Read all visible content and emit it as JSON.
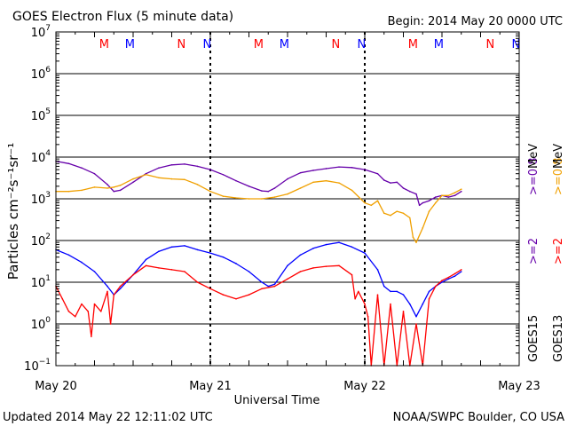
{
  "header": {
    "title": "GOES Electron Flux (5 minute data)",
    "begin": "Begin: 2014 May 20 0000 UTC"
  },
  "footer": {
    "updated": "Updated 2014 May 22 12:11:02 UTC",
    "credit": "NOAA/SWPC Boulder, CO USA"
  },
  "right_labels": {
    "goes15": "GOES15",
    "goes13": "GOES13",
    "ge2_goes15": ">=2",
    "ge2_goes13": ">=2",
    "ge08_goes15": ">=0.8",
    "ge08_goes13": ">=0.8",
    "mev_1": "MeV",
    "mev_2": "MeV"
  },
  "colors": {
    "goes15_ge08": "#6600aa",
    "goes13_ge08": "#f0a000",
    "goes15_ge2": "#0000ff",
    "goes13_ge2": "#ff0000",
    "marker_M": "#ff0000",
    "marker_N": "#0000ff"
  },
  "chart_data": {
    "type": "line",
    "title": "GOES Electron Flux (5 minute data)",
    "xlabel": "Universal Time",
    "ylabel": "Particles cm⁻²s⁻¹sr⁻¹",
    "yscale": "log",
    "ylim": [
      0.1,
      10000000
    ],
    "xlim": [
      0,
      72
    ],
    "x_unit": "hours since 2014 May 20 0000 UTC",
    "x_ticks": [
      {
        "x": 0,
        "label": "May 20"
      },
      {
        "x": 24,
        "label": "May 21"
      },
      {
        "x": 48,
        "label": "May 22"
      },
      {
        "x": 72,
        "label": "May 23"
      }
    ],
    "y_ticks": [
      {
        "exp": -1,
        "base": "10",
        "sup": "−1"
      },
      {
        "exp": 0,
        "base": "10",
        "sup": "0"
      },
      {
        "exp": 1,
        "base": "10",
        "sup": "1"
      },
      {
        "exp": 2,
        "base": "10",
        "sup": "2"
      },
      {
        "exp": 3,
        "base": "10",
        "sup": "3"
      },
      {
        "exp": 4,
        "base": "10",
        "sup": "4"
      },
      {
        "exp": 5,
        "base": "10",
        "sup": "5"
      },
      {
        "exp": 6,
        "base": "10",
        "sup": "6"
      },
      {
        "exp": 7,
        "base": "10",
        "sup": "7"
      }
    ],
    "threshold": 1000,
    "grid": true,
    "markers": [
      {
        "x": 7.5,
        "label": "M",
        "color": "#ff0000"
      },
      {
        "x": 11.5,
        "label": "M",
        "color": "#0000ff"
      },
      {
        "x": 19.5,
        "label": "N",
        "color": "#ff0000"
      },
      {
        "x": 23.5,
        "label": "N",
        "color": "#0000ff"
      },
      {
        "x": 31.5,
        "label": "M",
        "color": "#ff0000"
      },
      {
        "x": 35.5,
        "label": "M",
        "color": "#0000ff"
      },
      {
        "x": 43.5,
        "label": "N",
        "color": "#ff0000"
      },
      {
        "x": 47.5,
        "label": "N",
        "color": "#0000ff"
      },
      {
        "x": 55.5,
        "label": "M",
        "color": "#ff0000"
      },
      {
        "x": 59.5,
        "label": "M",
        "color": "#0000ff"
      },
      {
        "x": 67.5,
        "label": "N",
        "color": "#ff0000"
      },
      {
        "x": 71.5,
        "label": "N",
        "color": "#0000ff"
      }
    ],
    "series": [
      {
        "name": "GOES15 >=0.8 MeV",
        "color": "#6600aa",
        "x": [
          0,
          2,
          4,
          6,
          8,
          9,
          10,
          12,
          14,
          16,
          18,
          20,
          22,
          24,
          26,
          28,
          30,
          32,
          33,
          34,
          36,
          38,
          40,
          42,
          44,
          46,
          48,
          50,
          51,
          52,
          53,
          54,
          55,
          56,
          56.5,
          57,
          58,
          59,
          60,
          61,
          62,
          63
        ],
        "values": [
          8000,
          7000,
          5500,
          4000,
          2200,
          1500,
          1600,
          2500,
          4000,
          5500,
          6500,
          6800,
          6000,
          5000,
          3800,
          2700,
          2000,
          1550,
          1500,
          1800,
          3000,
          4200,
          4800,
          5300,
          5800,
          5600,
          5000,
          4000,
          2800,
          2400,
          2500,
          1800,
          1500,
          1300,
          700,
          800,
          900,
          1100,
          1200,
          1100,
          1200,
          1500
        ]
      },
      {
        "name": "GOES13 >=0.8 MeV",
        "color": "#f0a000",
        "x": [
          0,
          2,
          4,
          6,
          8,
          9,
          10,
          12,
          14,
          16,
          18,
          20,
          22,
          24,
          26,
          28,
          30,
          32,
          34,
          36,
          38,
          40,
          42,
          44,
          46,
          48,
          49,
          50,
          51,
          52,
          53,
          54,
          55,
          55.5,
          56,
          57,
          58,
          59,
          60,
          61,
          62,
          63
        ],
        "values": [
          1500,
          1500,
          1600,
          1900,
          1800,
          1900,
          2100,
          3000,
          3800,
          3200,
          3000,
          2900,
          2200,
          1500,
          1150,
          1050,
          1000,
          1000,
          1100,
          1300,
          1800,
          2500,
          2700,
          2400,
          1600,
          800,
          700,
          900,
          450,
          400,
          500,
          450,
          350,
          120,
          90,
          200,
          500,
          800,
          1200,
          1200,
          1400,
          1700
        ]
      },
      {
        "name": "GOES15 >=2 MeV",
        "color": "#0000ff",
        "x": [
          0,
          2,
          4,
          6,
          8,
          9,
          10,
          12,
          14,
          16,
          18,
          20,
          22,
          24,
          26,
          28,
          30,
          32,
          33,
          34,
          36,
          38,
          40,
          42,
          44,
          46,
          48,
          50,
          51,
          52,
          53,
          54,
          55,
          56,
          57,
          58,
          59,
          60,
          61,
          62,
          63
        ],
        "values": [
          60,
          45,
          30,
          18,
          8,
          5,
          7,
          15,
          35,
          55,
          70,
          75,
          60,
          50,
          40,
          28,
          18,
          10,
          8,
          9,
          25,
          45,
          65,
          80,
          90,
          70,
          50,
          20,
          8,
          6,
          6,
          5,
          3,
          1.5,
          3,
          6,
          8,
          10,
          12,
          14,
          18
        ]
      },
      {
        "name": "GOES13 >=2 MeV",
        "color": "#ff0000",
        "x": [
          0,
          1,
          2,
          3,
          4,
          5,
          5.5,
          6,
          7,
          8,
          8.5,
          9,
          10,
          12,
          14,
          16,
          18,
          20,
          22,
          24,
          26,
          28,
          30,
          32,
          34,
          36,
          38,
          40,
          42,
          44,
          46,
          46.5,
          47,
          48,
          48.5,
          49,
          50,
          51,
          52,
          53,
          54,
          55,
          56,
          57,
          58,
          59,
          60,
          61,
          62,
          63
        ],
        "values": [
          8,
          4,
          2,
          1.5,
          3,
          2,
          0.5,
          3,
          2,
          6,
          1,
          5,
          8,
          15,
          25,
          22,
          20,
          18,
          10,
          7,
          5,
          4,
          5,
          7,
          8,
          12,
          18,
          22,
          24,
          25,
          15,
          4,
          6,
          3,
          1.5,
          0.1,
          5,
          0.1,
          3,
          0.1,
          2,
          0.1,
          1,
          0.1,
          4,
          8,
          11,
          13,
          16,
          20
        ]
      }
    ]
  }
}
